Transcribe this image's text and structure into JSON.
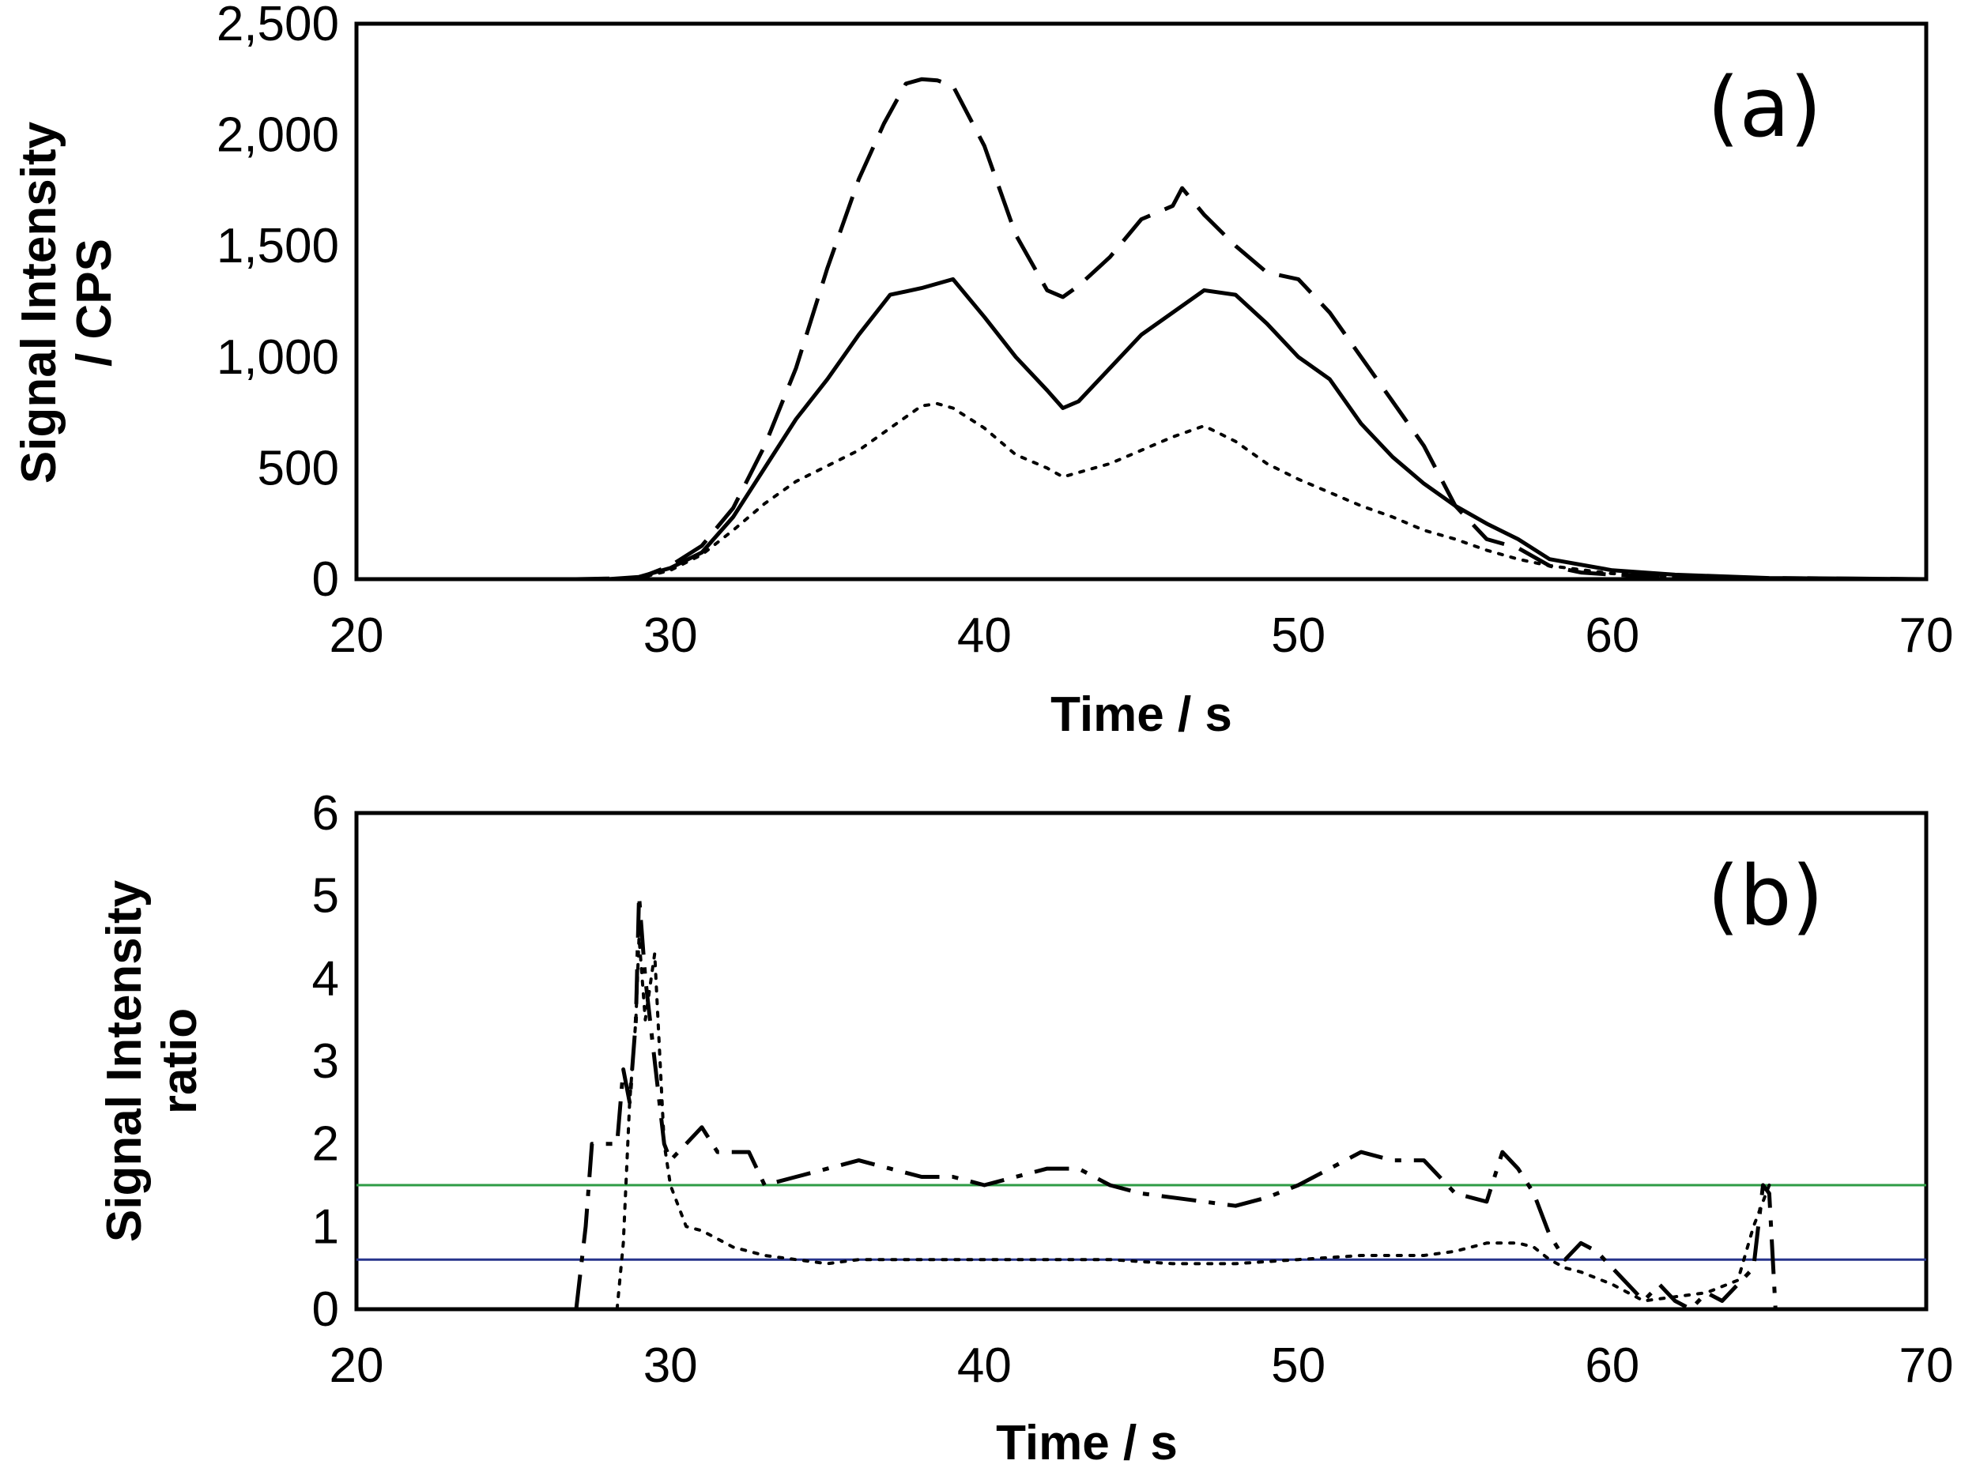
{
  "chart_data": [
    {
      "type": "line",
      "panel_label": "(a)",
      "xlabel": "Time / s",
      "ylabel_line1": "Signal Intensity",
      "ylabel_line2": "/ CPS",
      "xlim": [
        20,
        70
      ],
      "ylim": [
        0,
        2500
      ],
      "xticks": [
        20,
        30,
        40,
        50,
        60,
        70
      ],
      "xtick_labels": [
        "20",
        "30",
        "40",
        "50",
        "60",
        "70"
      ],
      "yticks": [
        0,
        500,
        1000,
        1500,
        2000,
        2500
      ],
      "ytick_labels": [
        "0",
        "500",
        "1,000",
        "1,500",
        "2,000",
        "2,500"
      ],
      "grid": false,
      "series": [
        {
          "style": "dashed",
          "color": "#000000",
          "x": [
            20,
            27,
            29,
            30,
            31,
            32,
            33,
            34,
            35,
            36,
            36.8,
            37.5,
            38,
            38.5,
            39,
            40,
            41,
            42,
            42.5,
            43,
            44,
            45,
            46,
            46.3,
            47,
            48,
            49,
            50,
            51,
            52,
            53,
            54,
            55,
            56,
            57,
            58,
            59,
            60,
            62,
            65,
            70
          ],
          "y": [
            0,
            0,
            5,
            60,
            150,
            320,
            600,
            950,
            1400,
            1800,
            2050,
            2230,
            2250,
            2245,
            2220,
            1950,
            1550,
            1300,
            1270,
            1320,
            1450,
            1620,
            1680,
            1760,
            1640,
            1500,
            1380,
            1350,
            1200,
            1000,
            800,
            600,
            330,
            180,
            140,
            60,
            30,
            20,
            10,
            5,
            0
          ]
        },
        {
          "style": "solid",
          "color": "#000000",
          "x": [
            20,
            28,
            29,
            30,
            31,
            32,
            33,
            34,
            35,
            36,
            37,
            38,
            39,
            40,
            41,
            42,
            42.5,
            43,
            44,
            45,
            46,
            47,
            48,
            49,
            50,
            51,
            52,
            53,
            54,
            55,
            56,
            57,
            58,
            60,
            62,
            65,
            70
          ],
          "y": [
            0,
            0,
            10,
            50,
            120,
            280,
            500,
            720,
            900,
            1100,
            1280,
            1310,
            1350,
            1180,
            1000,
            850,
            770,
            800,
            950,
            1100,
            1200,
            1300,
            1280,
            1150,
            1000,
            900,
            700,
            550,
            430,
            330,
            250,
            180,
            90,
            40,
            20,
            5,
            0
          ]
        },
        {
          "style": "dotted",
          "color": "#000000",
          "x": [
            20,
            28,
            29,
            30,
            31,
            32,
            33,
            34,
            35,
            36,
            37,
            38,
            38.5,
            39,
            40,
            41,
            42,
            42.5,
            43,
            44,
            45,
            46,
            47,
            48,
            49,
            50,
            51,
            52,
            53,
            54,
            55,
            56,
            57,
            58,
            60,
            62,
            65,
            70
          ],
          "y": [
            0,
            0,
            5,
            40,
            110,
            220,
            340,
            440,
            510,
            580,
            680,
            780,
            790,
            770,
            680,
            560,
            500,
            460,
            480,
            520,
            580,
            640,
            690,
            620,
            520,
            450,
            390,
            330,
            280,
            220,
            180,
            130,
            90,
            60,
            25,
            10,
            3,
            0
          ]
        }
      ]
    },
    {
      "type": "line",
      "panel_label": "(b)",
      "xlabel": "Time / s",
      "ylabel_line1": "Signal Intensity",
      "ylabel_line2": "ratio",
      "xlim": [
        20,
        70
      ],
      "ylim": [
        0,
        6
      ],
      "xticks": [
        20,
        30,
        40,
        50,
        60,
        70
      ],
      "xtick_labels": [
        "20",
        "30",
        "40",
        "50",
        "60",
        "70"
      ],
      "yticks": [
        0,
        1,
        2,
        3,
        4,
        5,
        6
      ],
      "ytick_labels": [
        "0",
        "1",
        "2",
        "3",
        "4",
        "5",
        "6"
      ],
      "grid": false,
      "reference_lines": [
        {
          "y": 1.5,
          "color": "#2e9b45"
        },
        {
          "y": 0.6,
          "color": "#27348b"
        }
      ],
      "series": [
        {
          "style": "dashdot",
          "color": "#000000",
          "x": [
            27,
            27.3,
            27.5,
            28,
            28.3,
            28.5,
            28.7,
            28.9,
            29,
            29.2,
            29.5,
            29.8,
            30,
            30.5,
            31,
            31.5,
            32,
            32.5,
            33,
            34,
            35,
            36,
            37,
            38,
            39,
            40,
            41,
            42,
            43,
            44,
            45,
            46,
            47,
            48,
            49,
            50,
            51,
            52,
            53,
            54,
            55,
            56,
            56.5,
            57,
            57.5,
            58,
            58.5,
            59,
            59.5,
            60,
            60.5,
            61,
            61.5,
            62,
            62.5,
            63,
            63.5,
            64,
            64.5,
            64.8,
            65,
            65.2
          ],
          "y": [
            0,
            1.0,
            2.0,
            2.0,
            2.0,
            2.9,
            2.5,
            3.5,
            5.0,
            4.0,
            3.0,
            2.0,
            1.8,
            2.0,
            2.2,
            1.9,
            1.9,
            1.9,
            1.5,
            1.6,
            1.7,
            1.8,
            1.7,
            1.6,
            1.6,
            1.5,
            1.6,
            1.7,
            1.7,
            1.5,
            1.4,
            1.35,
            1.3,
            1.25,
            1.35,
            1.5,
            1.7,
            1.9,
            1.8,
            1.8,
            1.4,
            1.3,
            1.9,
            1.7,
            1.4,
            0.9,
            0.6,
            0.8,
            0.7,
            0.5,
            0.3,
            0.1,
            0.3,
            0.1,
            0.0,
            0.2,
            0.1,
            0.3,
            0.5,
            1.5,
            1.4,
            0.0
          ]
        },
        {
          "style": "dotted",
          "color": "#000000",
          "x": [
            28.3,
            28.5,
            28.7,
            28.9,
            29,
            29.2,
            29.5,
            29.8,
            30,
            30.5,
            31,
            31.5,
            32,
            33,
            34,
            35,
            36,
            37,
            38,
            39,
            40,
            42,
            44,
            46,
            48,
            50,
            52,
            54,
            55,
            56,
            57,
            57.5,
            58,
            58.5,
            59,
            60,
            61,
            62,
            63,
            64,
            64.5,
            65
          ],
          "y": [
            0,
            0.8,
            2.5,
            3.5,
            4.5,
            3.5,
            4.3,
            2.0,
            1.5,
            1.0,
            0.95,
            0.85,
            0.75,
            0.65,
            0.6,
            0.55,
            0.6,
            0.6,
            0.6,
            0.6,
            0.6,
            0.6,
            0.6,
            0.55,
            0.55,
            0.6,
            0.65,
            0.65,
            0.7,
            0.8,
            0.8,
            0.75,
            0.6,
            0.5,
            0.45,
            0.3,
            0.1,
            0.15,
            0.2,
            0.35,
            1.0,
            1.5
          ]
        }
      ]
    }
  ]
}
